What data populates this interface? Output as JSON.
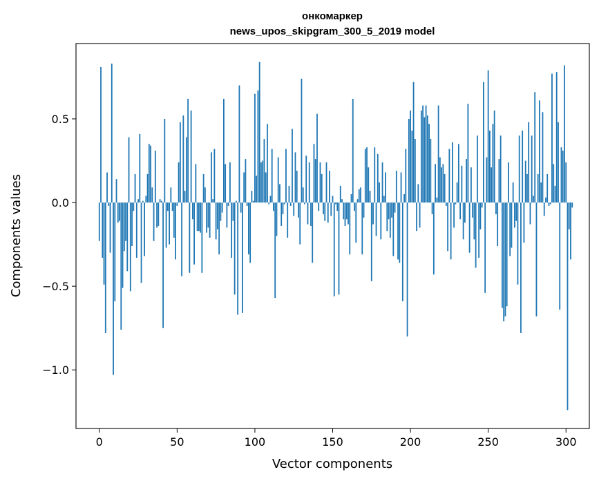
{
  "chart_data": {
    "type": "bar",
    "title": "онкомаркер",
    "subtitle": "news_upos_skipgram_300_5_2019 model",
    "xlabel": "Vector components",
    "ylabel": "Components values",
    "xlim": [
      -15,
      315
    ],
    "ylim": [
      -1.35,
      0.95
    ],
    "xticks": [
      0,
      50,
      100,
      150,
      200,
      250,
      300
    ],
    "xtick_labels": [
      "0",
      "50",
      "100",
      "150",
      "200",
      "250",
      "300"
    ],
    "yticks": [
      -1.0,
      -0.5,
      0.0,
      0.5
    ],
    "ytick_labels": [
      "−1.0",
      "−0.5",
      "0.0",
      "0.5"
    ],
    "grid": false,
    "bar_color": "#1f77b4",
    "values": [
      -0.23,
      0.81,
      -0.33,
      -0.49,
      -0.78,
      0.18,
      -0.02,
      -0.3,
      0.83,
      -1.03,
      -0.59,
      0.14,
      -0.12,
      -0.11,
      -0.76,
      -0.51,
      -0.29,
      -0.23,
      -0.41,
      0.39,
      -0.53,
      -0.26,
      -0.05,
      0.17,
      -0.33,
      0.02,
      0.41,
      -0.48,
      0.01,
      -0.32,
      0.04,
      0.17,
      0.35,
      0.34,
      0.09,
      -0.23,
      0.31,
      -0.15,
      -0.14,
      0.02,
      0.01,
      -0.75,
      0.5,
      -0.27,
      -0.05,
      -0.25,
      0.09,
      -0.05,
      -0.21,
      -0.34,
      -0.02,
      0.24,
      0.48,
      -0.44,
      0.52,
      0.07,
      0.39,
      0.62,
      -0.42,
      0.55,
      -0.1,
      -0.37,
      0.23,
      -0.17,
      -0.17,
      -0.18,
      -0.42,
      0.17,
      0.09,
      -0.18,
      -0.15,
      -0.21,
      0.3,
      0.02,
      0.32,
      -0.22,
      -0.16,
      -0.31,
      -0.11,
      -0.06,
      0.62,
      0.23,
      -0.15,
      -0.02,
      0.24,
      -0.33,
      -0.11,
      -0.55,
      0.01,
      -0.67,
      0.7,
      -0.06,
      -0.66,
      0.18,
      0.26,
      -0.02,
      -0.31,
      -0.36,
      0.07,
      0.01,
      0.65,
      0.16,
      0.67,
      0.84,
      0.24,
      0.25,
      0.38,
      0.18,
      0.47,
      -0.01,
      0.04,
      0.32,
      -0.05,
      -0.57,
      -0.2,
      0.27,
      0.11,
      -0.14,
      -0.07,
      -0.01,
      0.32,
      -0.21,
      0.1,
      -0.02,
      0.44,
      -0.08,
      0.3,
      0.19,
      -0.09,
      -0.25,
      0.74,
      0.09,
      -0.01,
      0.28,
      -0.13,
      0.24,
      -0.14,
      -0.36,
      0.35,
      0.26,
      0.53,
      -0.05,
      0.24,
      0.17,
      -0.07,
      -0.11,
      0.24,
      -0.12,
      0.19,
      -0.08,
      0.04,
      -0.56,
      -0.01,
      -0.05,
      -0.55,
      0.1,
      0.02,
      -0.1,
      -0.14,
      -0.1,
      -0.13,
      -0.31,
      0.05,
      0.62,
      -0.05,
      -0.24,
      0.02,
      0.08,
      0.09,
      -0.31,
      -0.09,
      0.32,
      0.33,
      0.21,
      0.07,
      -0.47,
      -0.13,
      0.33,
      -0.2,
      0.29,
      0.12,
      -0.22,
      0.24,
      0.04,
      0.18,
      -0.17,
      -0.1,
      -0.21,
      -0.09,
      -0.32,
      -0.06,
      0.19,
      -0.34,
      -0.36,
      0.18,
      -0.59,
      0.05,
      0.32,
      -0.8,
      0.5,
      0.55,
      0.43,
      0.72,
      0.38,
      -0.17,
      0.11,
      -0.15,
      0.55,
      0.58,
      0.51,
      0.58,
      0.52,
      0.47,
      0.38,
      -0.07,
      -0.43,
      0.23,
      0.03,
      0.58,
      0.27,
      0.21,
      0.23,
      0.17,
      -0.02,
      -0.29,
      0.32,
      -0.34,
      0.36,
      -0.15,
      -0.01,
      0.12,
      0.35,
      -0.1,
      0.22,
      -0.22,
      -0.12,
      0.26,
      0.59,
      -0.3,
      0.21,
      -0.09,
      -0.22,
      -0.39,
      0.4,
      -0.33,
      -0.16,
      -0.03,
      0.72,
      -0.54,
      0.27,
      0.79,
      0.43,
      0.21,
      0.47,
      0.55,
      -0.07,
      -0.26,
      0.26,
      0.4,
      -0.63,
      -0.71,
      -0.68,
      -0.62,
      0.24,
      -0.32,
      -0.27,
      0.12,
      -0.15,
      -0.11,
      -0.49,
      0.4,
      -0.78,
      0.43,
      -0.24,
      0.25,
      0.17,
      0.48,
      -0.13,
      0.4,
      0.04,
      0.66,
      -0.68,
      0.17,
      0.61,
      0.12,
      0.54,
      -0.08,
      0.03,
      0.17,
      -0.02,
      -0.01,
      0.77,
      0.23,
      0.1,
      0.78,
      0.48,
      -0.64,
      0.33,
      0.31,
      0.82,
      0.24,
      -1.24,
      -0.16,
      -0.34,
      -0.03
    ]
  }
}
